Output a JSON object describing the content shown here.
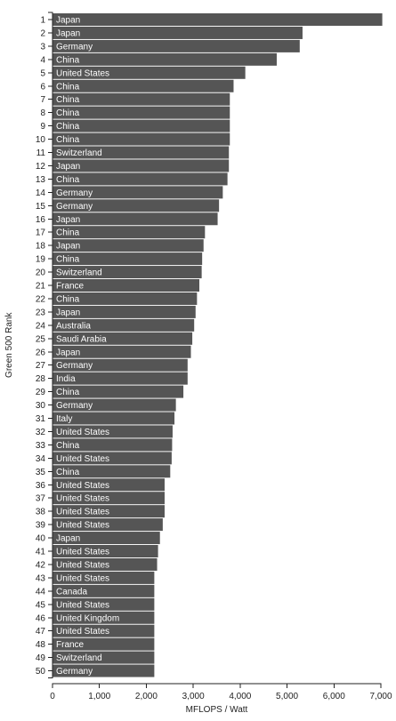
{
  "chart_data": {
    "type": "bar",
    "orientation": "horizontal",
    "xlabel": "MFLOPS / Watt",
    "ylabel": "Green 500 Rank",
    "xlim": [
      0,
      7000
    ],
    "x_ticks": [
      0,
      1000,
      2000,
      3000,
      4000,
      5000,
      6000,
      7000
    ],
    "x_tick_labels": [
      "0",
      "1,000",
      "2,000",
      "3,000",
      "4,000",
      "5,000",
      "6,000",
      "7,000"
    ],
    "grid": false,
    "bars": [
      {
        "rank": 1,
        "country": "Japan",
        "value": 7030
      },
      {
        "rank": 2,
        "country": "Japan",
        "value": 5330
      },
      {
        "rank": 3,
        "country": "Germany",
        "value": 5270
      },
      {
        "rank": 4,
        "country": "China",
        "value": 4780
      },
      {
        "rank": 5,
        "country": "United States",
        "value": 4110
      },
      {
        "rank": 6,
        "country": "China",
        "value": 3860
      },
      {
        "rank": 7,
        "country": "China",
        "value": 3780
      },
      {
        "rank": 8,
        "country": "China",
        "value": 3780
      },
      {
        "rank": 9,
        "country": "China",
        "value": 3780
      },
      {
        "rank": 10,
        "country": "China",
        "value": 3780
      },
      {
        "rank": 11,
        "country": "Switzerland",
        "value": 3760
      },
      {
        "rank": 12,
        "country": "Japan",
        "value": 3760
      },
      {
        "rank": 13,
        "country": "China",
        "value": 3730
      },
      {
        "rank": 14,
        "country": "Germany",
        "value": 3630
      },
      {
        "rank": 15,
        "country": "Germany",
        "value": 3550
      },
      {
        "rank": 16,
        "country": "Japan",
        "value": 3520
      },
      {
        "rank": 17,
        "country": "China",
        "value": 3250
      },
      {
        "rank": 18,
        "country": "Japan",
        "value": 3220
      },
      {
        "rank": 19,
        "country": "China",
        "value": 3190
      },
      {
        "rank": 20,
        "country": "Switzerland",
        "value": 3180
      },
      {
        "rank": 21,
        "country": "France",
        "value": 3130
      },
      {
        "rank": 22,
        "country": "China",
        "value": 3080
      },
      {
        "rank": 23,
        "country": "Japan",
        "value": 3050
      },
      {
        "rank": 24,
        "country": "Australia",
        "value": 3020
      },
      {
        "rank": 25,
        "country": "Saudi Arabia",
        "value": 2980
      },
      {
        "rank": 26,
        "country": "Japan",
        "value": 2950
      },
      {
        "rank": 27,
        "country": "Germany",
        "value": 2880
      },
      {
        "rank": 28,
        "country": "India",
        "value": 2880
      },
      {
        "rank": 29,
        "country": "China",
        "value": 2790
      },
      {
        "rank": 30,
        "country": "Germany",
        "value": 2630
      },
      {
        "rank": 31,
        "country": "Italy",
        "value": 2600
      },
      {
        "rank": 32,
        "country": "United States",
        "value": 2560
      },
      {
        "rank": 33,
        "country": "China",
        "value": 2550
      },
      {
        "rank": 34,
        "country": "United States",
        "value": 2540
      },
      {
        "rank": 35,
        "country": "China",
        "value": 2510
      },
      {
        "rank": 36,
        "country": "United States",
        "value": 2390
      },
      {
        "rank": 37,
        "country": "United States",
        "value": 2390
      },
      {
        "rank": 38,
        "country": "United States",
        "value": 2390
      },
      {
        "rank": 39,
        "country": "United States",
        "value": 2350
      },
      {
        "rank": 40,
        "country": "Japan",
        "value": 2290
      },
      {
        "rank": 41,
        "country": "United States",
        "value": 2250
      },
      {
        "rank": 42,
        "country": "United States",
        "value": 2230
      },
      {
        "rank": 43,
        "country": "United States",
        "value": 2170
      },
      {
        "rank": 44,
        "country": "Canada",
        "value": 2170
      },
      {
        "rank": 45,
        "country": "United States",
        "value": 2170
      },
      {
        "rank": 46,
        "country": "United Kingdom",
        "value": 2170
      },
      {
        "rank": 47,
        "country": "United States",
        "value": 2170
      },
      {
        "rank": 48,
        "country": "France",
        "value": 2170
      },
      {
        "rank": 49,
        "country": "Switzerland",
        "value": 2170
      },
      {
        "rank": 50,
        "country": "Germany",
        "value": 2170
      }
    ],
    "colors": {
      "bar": "#555555",
      "bar_label": "#ffffff",
      "axis": "#222222"
    }
  }
}
